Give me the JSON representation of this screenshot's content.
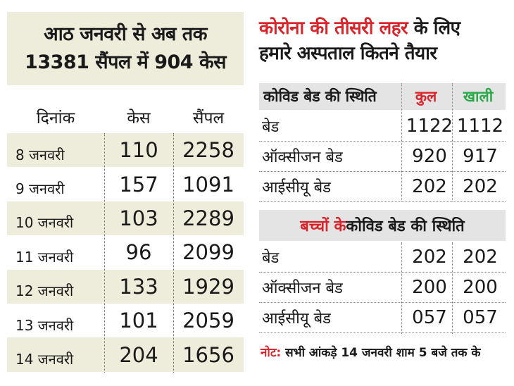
{
  "left": {
    "title_line1": "आठ जनवरी से अब तक",
    "title_line2": "13381 सैंपल में 904 केस",
    "headers": [
      "दिनांक",
      "केस",
      "सैंपल"
    ],
    "rows": [
      {
        "date": "8 जनवरी",
        "cases": "110",
        "samples": "2258"
      },
      {
        "date": "9 जनवरी",
        "cases": "157",
        "samples": "1091"
      },
      {
        "date": "10 जनवरी",
        "cases": "103",
        "samples": "2289"
      },
      {
        "date": "11 जनवरी",
        "cases": "96",
        "samples": "2099"
      },
      {
        "date": "12 जनवरी",
        "cases": "133",
        "samples": "1929"
      },
      {
        "date": "13 जनवरी",
        "cases": "101",
        "samples": "2059"
      },
      {
        "date": "14 जनवरी",
        "cases": "204",
        "samples": "1656"
      }
    ]
  },
  "right": {
    "title_red": "कोरोना की तीसरी लहर",
    "title_rest": " के लिए",
    "title_line2": "हमारे अस्पताल कितने तैयार",
    "table1": {
      "header_label": "कोविड बेड की स्थिति",
      "header_total": "कुल",
      "header_empty": "खाली",
      "rows": [
        {
          "label": "बेड",
          "total": "1122",
          "empty": "1112"
        },
        {
          "label": "ऑक्सीजन बेड",
          "total": "920",
          "empty": "917"
        },
        {
          "label": "आईसीयू बेड",
          "total": "202",
          "empty": "202"
        }
      ]
    },
    "table2": {
      "header_red": "बच्चों के",
      "header_rest": " कोविड बेड की स्थिति",
      "rows": [
        {
          "label": "बेड",
          "total": "202",
          "empty": "202"
        },
        {
          "label": "ऑक्सीजन बेड",
          "total": "200",
          "empty": "200"
        },
        {
          "label": "आईसीयू बेड",
          "total": "057",
          "empty": "057"
        }
      ]
    },
    "note_label": "नोट:",
    "note_text": " सभी आंकड़े 14 जनवरी शाम 5 बजे तक के"
  },
  "colors": {
    "accent_red": "#d8242b",
    "accent_green": "#2aa84a",
    "shade": "#eeecda",
    "header_gray": "#e4e4e4"
  }
}
